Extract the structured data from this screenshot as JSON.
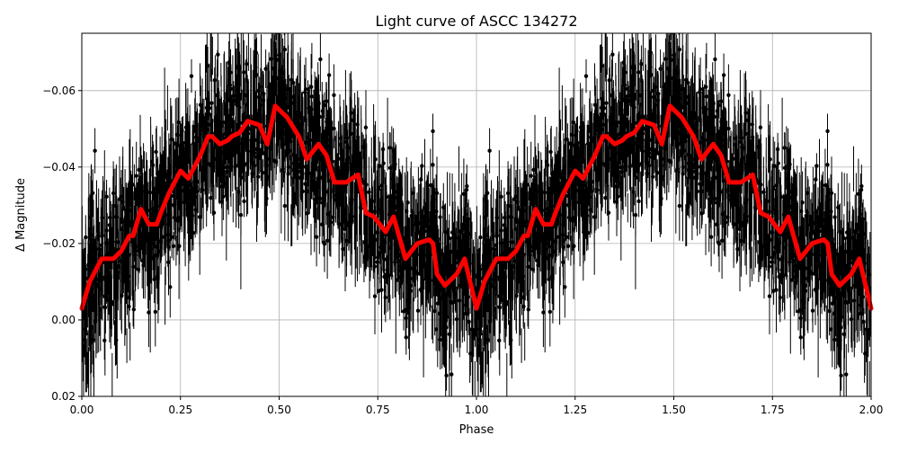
{
  "chart_data": {
    "type": "scatter",
    "title": "Light curve of ASCC 134272",
    "xlabel": "Phase",
    "ylabel": "Δ Magnitude",
    "xlim": [
      0.0,
      2.0
    ],
    "ylim": [
      0.02,
      -0.075
    ],
    "y_inverted": true,
    "grid": true,
    "x_ticks": [
      "0.00",
      "0.25",
      "0.50",
      "0.75",
      "1.00",
      "1.25",
      "1.50",
      "1.75",
      "2.00"
    ],
    "x_tick_values": [
      0,
      0.25,
      0.5,
      0.75,
      1.0,
      1.25,
      1.5,
      1.75,
      2.0
    ],
    "y_ticks": [
      "−0.06",
      "−0.04",
      "−0.02",
      "0.00",
      "0.02"
    ],
    "y_tick_values": [
      -0.06,
      -0.04,
      -0.02,
      0.0,
      0.02
    ],
    "colors": {
      "points": "#000000",
      "model": "#ff0000",
      "grid": "#b0b0b0"
    },
    "series": [
      {
        "kind": "error-bar points",
        "description_of_marks": "dense phase-folded photometry with error bars, repeated over two phase cycles"
      },
      {
        "kind": "model line",
        "period_repeat": true,
        "phase": [
          0.0,
          0.02,
          0.05,
          0.08,
          0.1,
          0.12,
          0.13,
          0.15,
          0.17,
          0.19,
          0.2,
          0.22,
          0.25,
          0.27,
          0.3,
          0.32,
          0.33,
          0.35,
          0.37,
          0.38,
          0.4,
          0.42,
          0.45,
          0.47,
          0.49,
          0.52,
          0.55,
          0.57,
          0.6,
          0.62,
          0.64,
          0.67,
          0.7,
          0.72,
          0.74,
          0.77,
          0.79,
          0.82,
          0.85,
          0.88,
          0.89,
          0.9,
          0.92,
          0.95,
          0.97,
          1.0
        ],
        "magnitude": [
          -0.003,
          -0.01,
          -0.016,
          -0.016,
          -0.018,
          -0.022,
          -0.022,
          -0.029,
          -0.025,
          -0.025,
          -0.028,
          -0.033,
          -0.039,
          -0.037,
          -0.043,
          -0.048,
          -0.048,
          -0.046,
          -0.047,
          -0.048,
          -0.049,
          -0.052,
          -0.051,
          -0.046,
          -0.056,
          -0.053,
          -0.048,
          -0.042,
          -0.046,
          -0.043,
          -0.036,
          -0.036,
          -0.038,
          -0.028,
          -0.027,
          -0.023,
          -0.027,
          -0.016,
          -0.02,
          -0.021,
          -0.02,
          -0.012,
          -0.009,
          -0.012,
          -0.016,
          -0.003
        ]
      }
    ]
  }
}
